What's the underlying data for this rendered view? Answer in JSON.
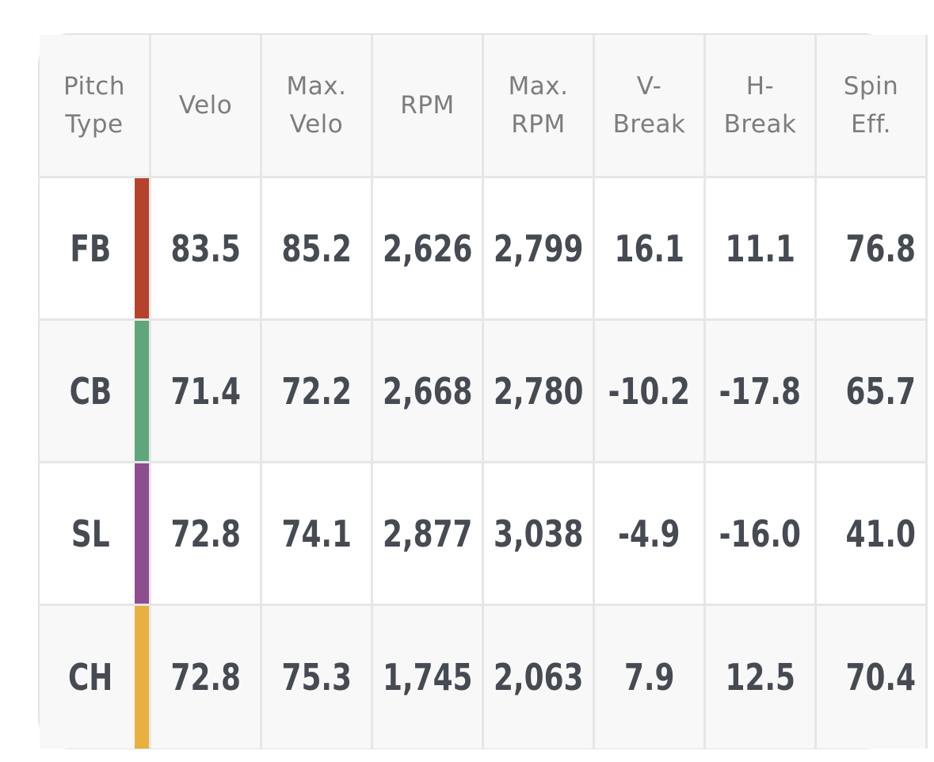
{
  "headers": [
    "Pitch\nType",
    "Velo",
    "Max.\nVelo",
    "RPM",
    "Max.\nRPM",
    "V-\nBreak",
    "H-\nBreak",
    "Spin\nEff."
  ],
  "rows": [
    {
      "type": "FB",
      "color": "#b5432c",
      "values": [
        "83.5",
        "85.2",
        "2,626",
        "2,799",
        "16.1",
        "11.1",
        "76.8"
      ]
    },
    {
      "type": "CB",
      "color": "#5fa67b",
      "values": [
        "71.4",
        "72.2",
        "2,668",
        "2,780",
        "-10.2",
        "-17.8",
        "65.7"
      ]
    },
    {
      "type": "SL",
      "color": "#8d4d8f",
      "values": [
        "72.8",
        "74.1",
        "2,877",
        "3,038",
        "-4.9",
        "-16.0",
        "41.0"
      ]
    },
    {
      "type": "CH",
      "color": "#e8b03f",
      "values": [
        "72.8",
        "75.3",
        "1,745",
        "2,063",
        "7.9",
        "12.5",
        "70.4"
      ]
    }
  ]
}
